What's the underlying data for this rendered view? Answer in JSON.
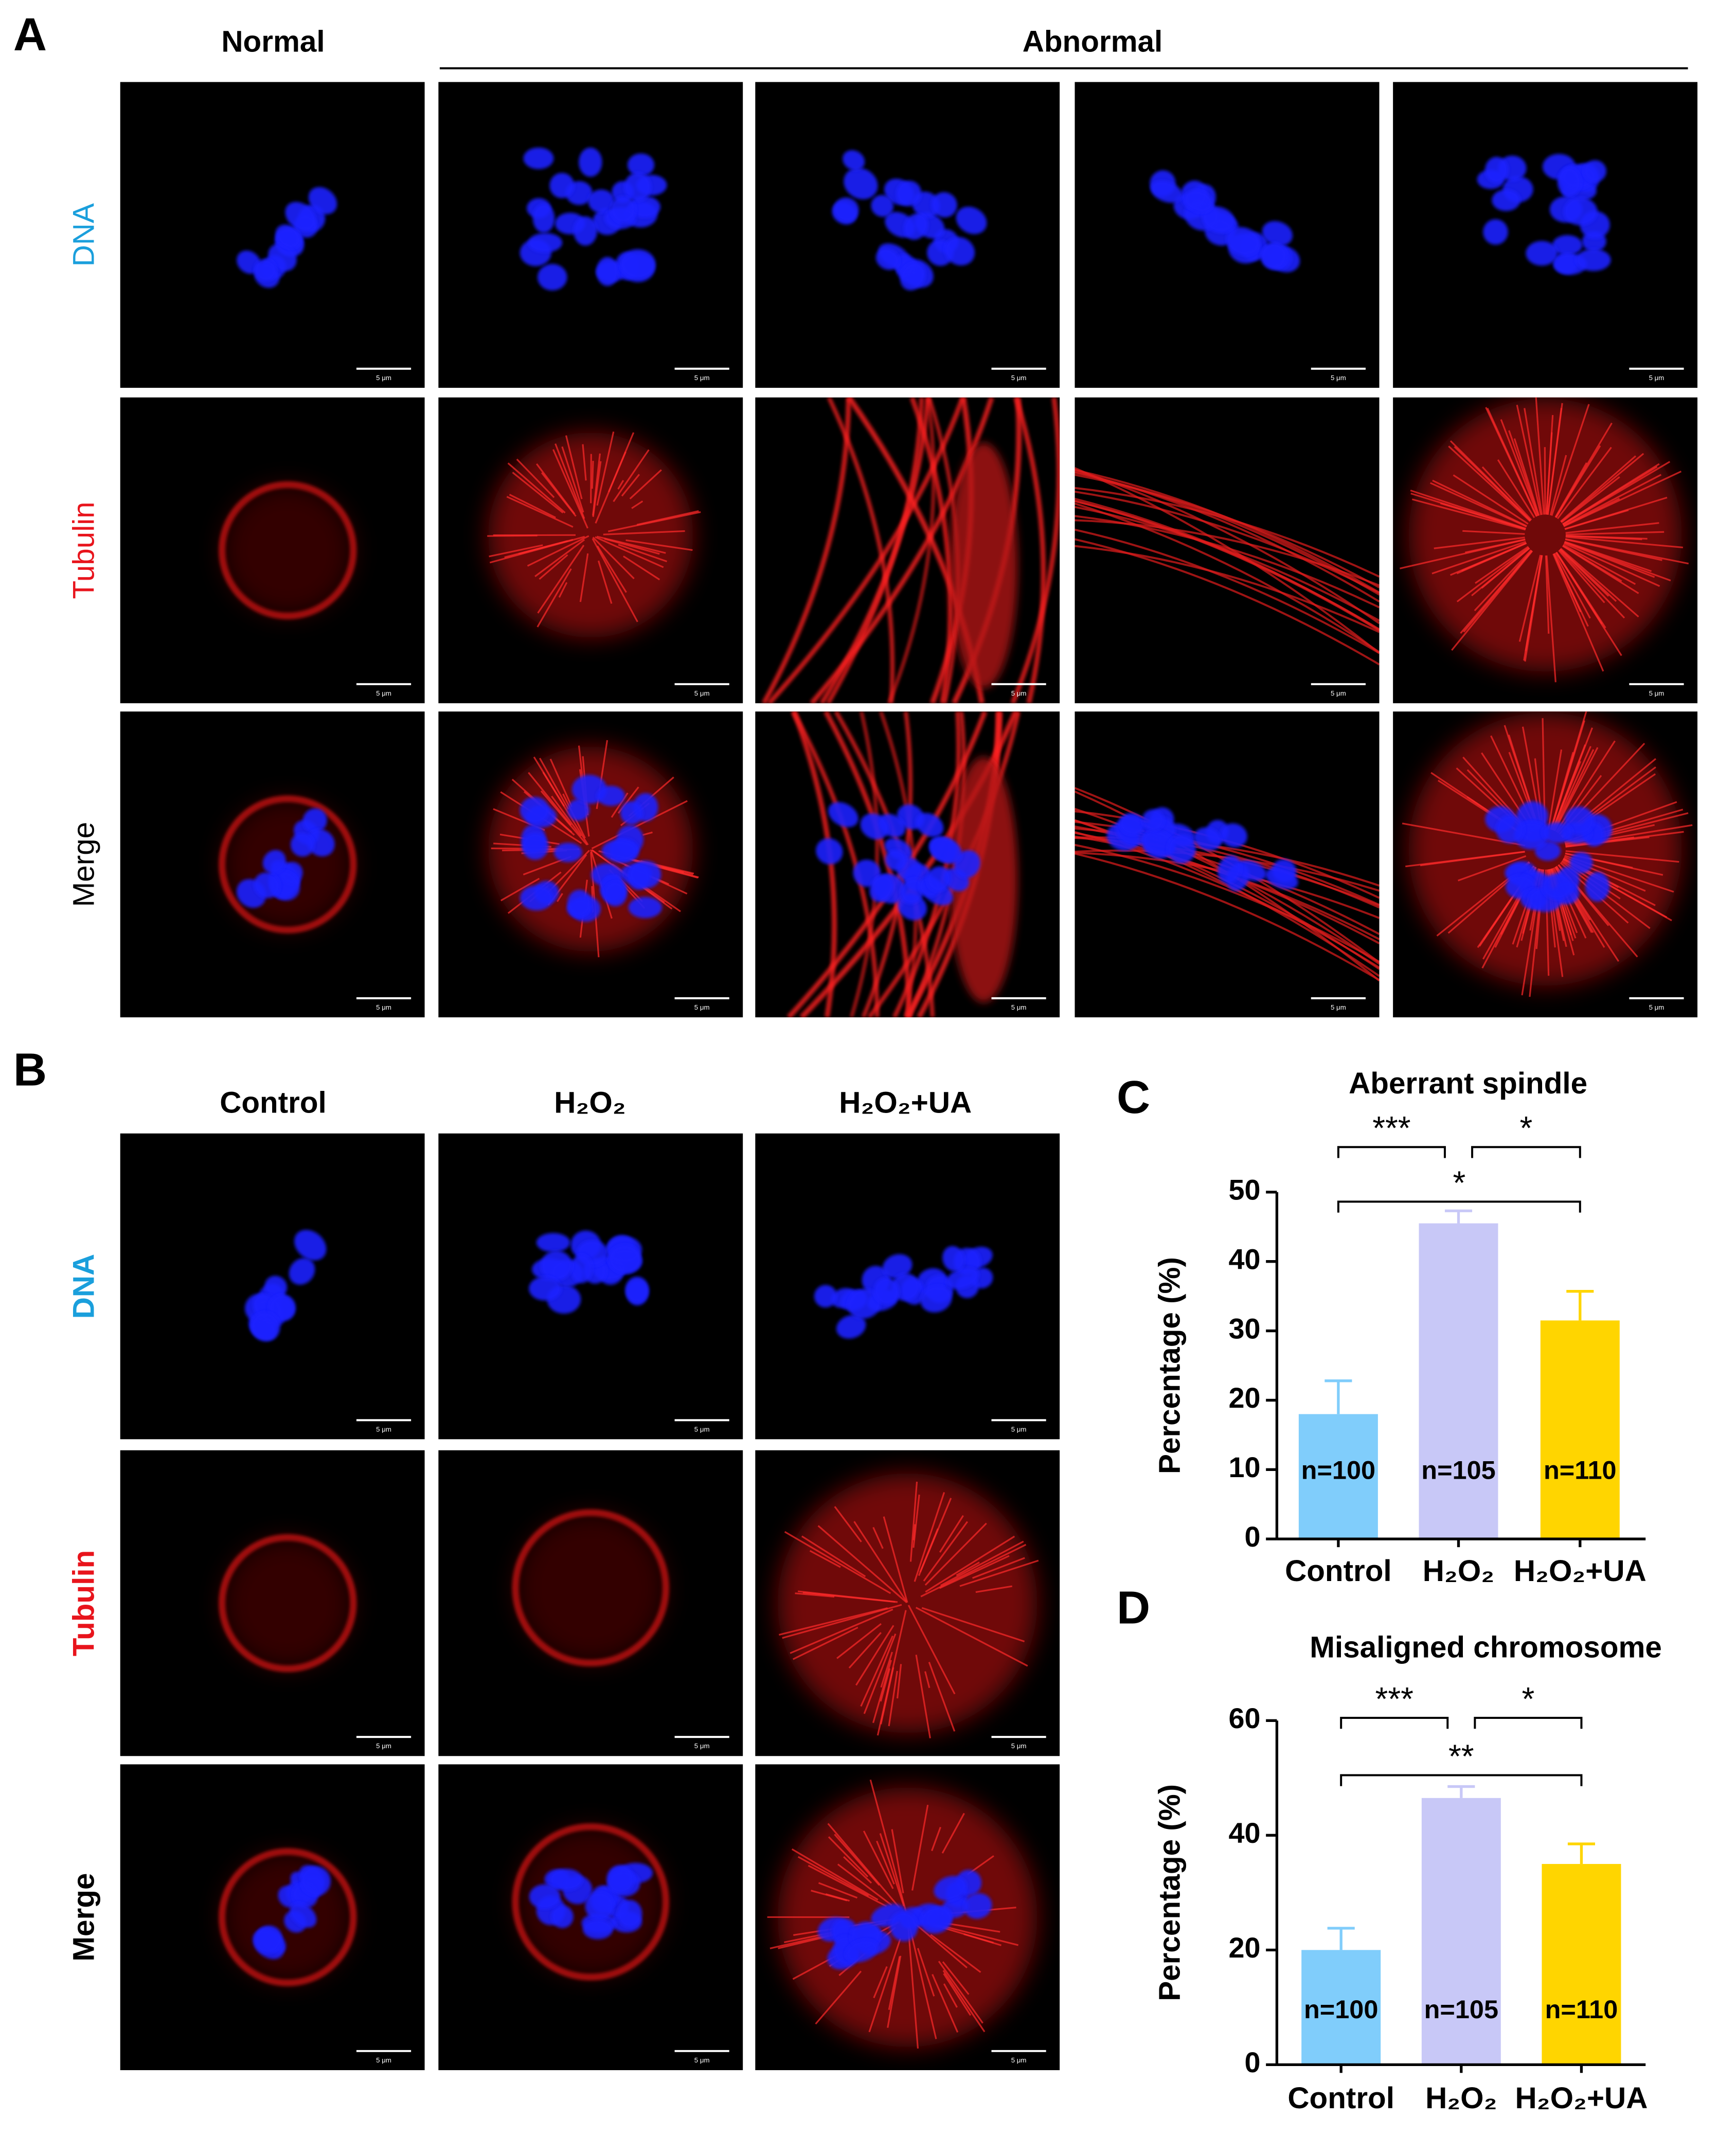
{
  "figure": {
    "panels": [
      {
        "label": "A",
        "columns": [
          "Normal",
          "Abnormal"
        ],
        "rows": [
          "DNA",
          "Tubulin",
          "Merge"
        ]
      },
      {
        "label": "B",
        "columns": [
          "Control",
          "H₂O₂",
          "H₂O₂+UA"
        ],
        "rows": [
          "DNA",
          "Tubulin",
          "Merge"
        ]
      }
    ],
    "scale_bar": "5 μm"
  },
  "chart_data": [
    {
      "type": "bar",
      "panel_label": "C",
      "title": "Aberrant spindle",
      "y_label": "Percentage (%)",
      "categories": [
        "Control",
        "H₂O₂",
        "H₂O₂+UA"
      ],
      "values": [
        18,
        45.5,
        31.5
      ],
      "errors": [
        4.8,
        1.8,
        4.2
      ],
      "colors": [
        "#80cdfb",
        "#c8c8f7",
        "#ffd500"
      ],
      "bar_labels": [
        "n=100",
        "n=105",
        "n=110"
      ],
      "significance": [
        "***",
        "*",
        "*"
      ],
      "ylim": [
        0,
        50
      ],
      "yticks": [
        0,
        10,
        20,
        30,
        40,
        50
      ]
    },
    {
      "type": "bar",
      "panel_label": "D",
      "title": "Misaligned chromosome",
      "y_label": "Percentage (%)",
      "categories": [
        "Control",
        "H₂O₂",
        "H₂O₂+UA"
      ],
      "values": [
        20,
        46.5,
        35
      ],
      "errors": [
        3.8,
        2,
        3.5
      ],
      "colors": [
        "#80cdfb",
        "#c8c8f7",
        "#ffd500"
      ],
      "bar_labels": [
        "n=100",
        "n=105",
        "n=110"
      ],
      "significance": [
        "***",
        "*",
        "**"
      ],
      "ylim": [
        0,
        60
      ],
      "yticks": [
        0,
        20,
        40,
        60
      ]
    }
  ]
}
